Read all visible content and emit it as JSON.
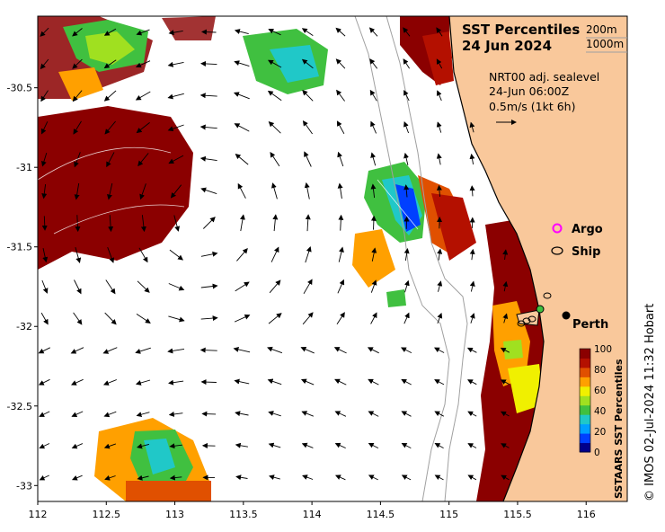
{
  "map": {
    "title_line1": "SST Percentiles",
    "title_line2": "24 Jun 2024",
    "depth_contours": [
      "200m",
      "1000m"
    ],
    "current_info": {
      "product": "NRT00 adj. sealevel",
      "time": "24-Jun 06:00Z",
      "scale": "0.5m/s (1kt 6h)"
    },
    "legend": {
      "argo": "Argo",
      "ship": "Ship"
    },
    "place": {
      "name": "Perth",
      "lon": 115.86,
      "lat": -31.95
    },
    "credit": "© IMOS 02-Jul-2024 11:32 Hobart",
    "x_axis": {
      "ticks": [
        "112",
        "112.5",
        "113",
        "113.5",
        "114",
        "114.5",
        "115",
        "115.5",
        "116"
      ],
      "range": [
        112,
        116.3
      ]
    },
    "y_axis": {
      "ticks": [
        "-30.5",
        "-31",
        "-31.5",
        "-32",
        "-32.5",
        "-33"
      ],
      "range": [
        -33.1,
        -30.05
      ]
    },
    "colorbar": {
      "title": "SSTAARS SST Percentiles",
      "ticks": [
        "0",
        "20",
        "40",
        "60",
        "80",
        "100"
      ],
      "colors": [
        "#00008b",
        "#0040ff",
        "#00a0ff",
        "#20c8c8",
        "#40c040",
        "#a0e020",
        "#f0f000",
        "#ffa000",
        "#e05000",
        "#b41000",
        "#8b0000"
      ]
    },
    "colors": {
      "land": "#f9c89b",
      "ocean": "#ffffff",
      "contour": "#a0a0a0"
    }
  }
}
